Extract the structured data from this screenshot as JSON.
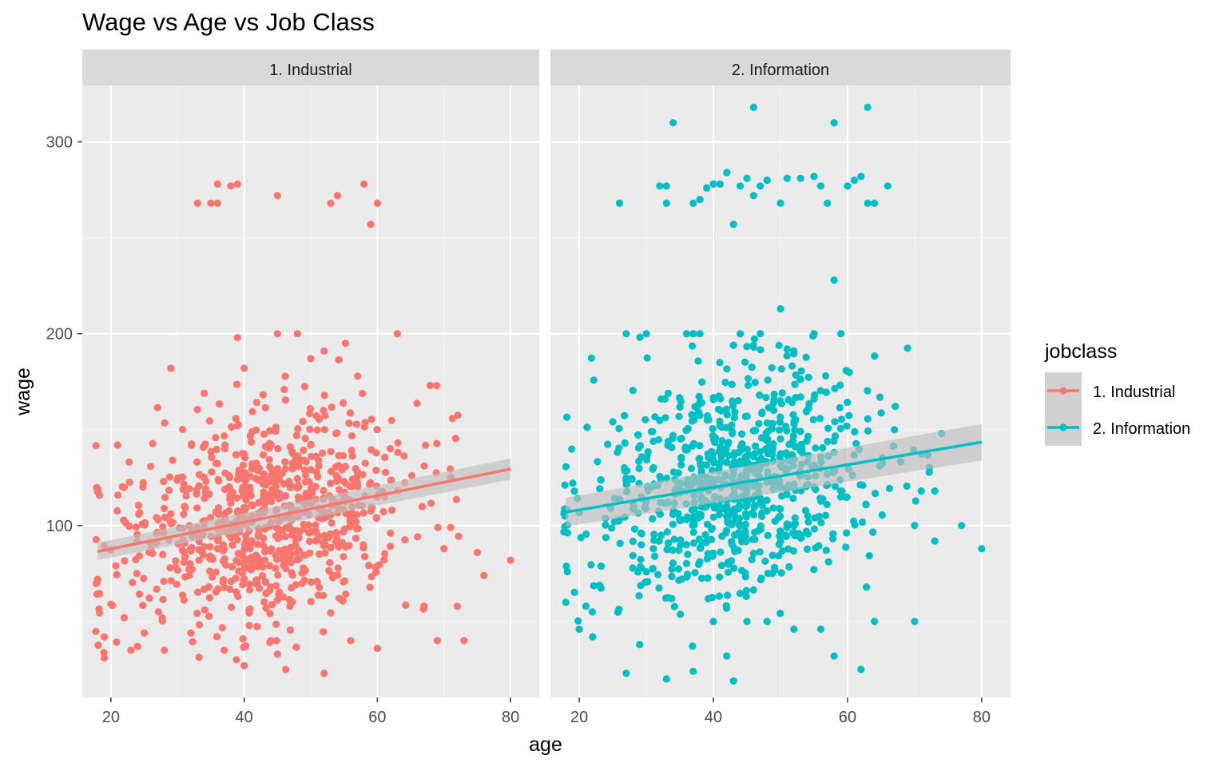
{
  "colors": {
    "industrial": "#F8766D",
    "information": "#00BFC4",
    "panel_bg": "#EBEBEB",
    "strip_bg": "#D9D9D9",
    "grid_major": "#FFFFFF",
    "ribbon": "#BEBEBE",
    "tick_text": "#4D4D4D"
  },
  "chart_data": {
    "type": "scatter",
    "title": "Wage vs Age vs Job Class",
    "xlabel": "age",
    "ylabel": "wage",
    "xlim": [
      15.7,
      84.3
    ],
    "ylim": [
      10.4,
      329.4
    ],
    "x_ticks": [
      20,
      40,
      60,
      80
    ],
    "y_ticks": [
      100,
      200,
      300
    ],
    "grid": true,
    "legend": {
      "title": "jobclass",
      "position": "right",
      "entries": [
        "1. Industrial",
        "2. Information"
      ]
    },
    "facets": [
      {
        "label": "1. Industrial",
        "series_name": "1. Industrial",
        "color": "#F8766D",
        "fit": {
          "method": "lm",
          "x": [
            18,
            80
          ],
          "y": [
            86.5,
            129.5
          ],
          "se_low": [
            82.0,
            124.0
          ],
          "se_high": [
            91.0,
            135.0
          ]
        },
        "points": [
          [
            33,
            268
          ],
          [
            35,
            268
          ],
          [
            36,
            278
          ],
          [
            36,
            268
          ],
          [
            38,
            277
          ],
          [
            39,
            278
          ],
          [
            45,
            272
          ],
          [
            53,
            268
          ],
          [
            54,
            272
          ],
          [
            58,
            278
          ],
          [
            60,
            268
          ],
          [
            59,
            257
          ],
          [
            39,
            198
          ],
          [
            45,
            200
          ],
          [
            48,
            200
          ],
          [
            52,
            191
          ],
          [
            29,
            182
          ],
          [
            50,
            187
          ],
          [
            40,
            182
          ],
          [
            21,
            142
          ],
          [
            34,
            169
          ],
          [
            63,
            200
          ],
          [
            18,
            72
          ],
          [
            19,
            31
          ],
          [
            19,
            42
          ],
          [
            20,
            59
          ],
          [
            22,
            52
          ],
          [
            23,
            35
          ],
          [
            24,
            37
          ],
          [
            25,
            44
          ],
          [
            28,
            35
          ],
          [
            32,
            44
          ],
          [
            37,
            35
          ],
          [
            40,
            27
          ],
          [
            44,
            40
          ],
          [
            45,
            33
          ],
          [
            52,
            23
          ],
          [
            56,
            40
          ],
          [
            60,
            36
          ],
          [
            69,
            40
          ],
          [
            73,
            40
          ],
          [
            76,
            74
          ],
          [
            80,
            82
          ],
          [
            75,
            86
          ],
          [
            71,
            99
          ],
          [
            70,
            88
          ],
          [
            72,
            58
          ],
          [
            67,
            58
          ]
        ]
      },
      {
        "label": "2. Information",
        "series_name": "2. Information",
        "color": "#00BFC4",
        "fit": {
          "method": "lm",
          "x": [
            18,
            80
          ],
          "y": [
            107.0,
            143.5
          ],
          "se_low": [
            99.5,
            134.0
          ],
          "se_high": [
            114.5,
            153.0
          ]
        },
        "points": [
          [
            34,
            310
          ],
          [
            46,
            318
          ],
          [
            58,
            310
          ],
          [
            63,
            318
          ],
          [
            26,
            268
          ],
          [
            32,
            277
          ],
          [
            33,
            277
          ],
          [
            33,
            268
          ],
          [
            37,
            268
          ],
          [
            38,
            270
          ],
          [
            39,
            276
          ],
          [
            40,
            278
          ],
          [
            41,
            278
          ],
          [
            42,
            284
          ],
          [
            43,
            257
          ],
          [
            44,
            277
          ],
          [
            45,
            281
          ],
          [
            46,
            272
          ],
          [
            47,
            277
          ],
          [
            48,
            280
          ],
          [
            50,
            268
          ],
          [
            51,
            281
          ],
          [
            53,
            281
          ],
          [
            55,
            282
          ],
          [
            56,
            277
          ],
          [
            57,
            268
          ],
          [
            60,
            277
          ],
          [
            61,
            280
          ],
          [
            62,
            282
          ],
          [
            63,
            268
          ],
          [
            64,
            268
          ],
          [
            66,
            277
          ],
          [
            58,
            228
          ],
          [
            50,
            213
          ],
          [
            27,
            200
          ],
          [
            30,
            200
          ],
          [
            36,
            200
          ],
          [
            37,
            200
          ],
          [
            38,
            200
          ],
          [
            44,
            200
          ],
          [
            47,
            200
          ],
          [
            55,
            200
          ],
          [
            59,
            200
          ],
          [
            43,
            194
          ],
          [
            46,
            193
          ],
          [
            51,
            192
          ],
          [
            18,
            60
          ],
          [
            20,
            46
          ],
          [
            21,
            58
          ],
          [
            22,
            42
          ],
          [
            27,
            23
          ],
          [
            29,
            38
          ],
          [
            33,
            20
          ],
          [
            37,
            24
          ],
          [
            43,
            19
          ],
          [
            42,
            32
          ],
          [
            40,
            50
          ],
          [
            45,
            50
          ],
          [
            48,
            50
          ],
          [
            52,
            46
          ],
          [
            56,
            46
          ],
          [
            58,
            32
          ],
          [
            62,
            25
          ],
          [
            64,
            50
          ],
          [
            70,
            50
          ],
          [
            70,
            100
          ],
          [
            73,
            92
          ],
          [
            77,
            100
          ],
          [
            80,
            88
          ],
          [
            74,
            148
          ],
          [
            67,
            150
          ],
          [
            73,
            118
          ],
          [
            71,
            118
          ]
        ]
      }
    ]
  }
}
